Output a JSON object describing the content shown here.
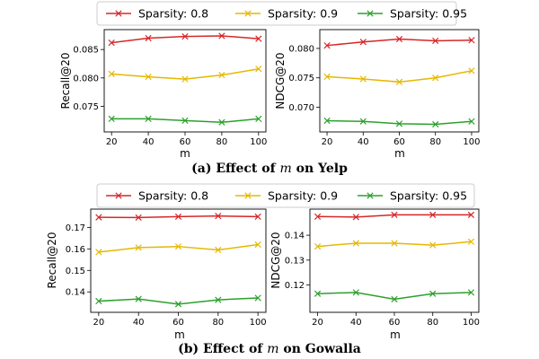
{
  "colors": {
    "red": "#d62728",
    "yellow": "#e6b800",
    "green": "#2ca02c"
  },
  "legends": [
    [
      "Sparsity: 0.8",
      "Sparsity: 0.9",
      "Sparsity: 0.95"
    ],
    [
      "Sparsity: 0.8",
      "Sparsity: 0.9",
      "Sparsity: 0.95"
    ]
  ],
  "captions": [
    {
      "prefix": "(a) Effect of ",
      "var": "m",
      "suffix": " on Yelp"
    },
    {
      "prefix": "(b) Effect of ",
      "var": "m",
      "suffix": " on Gowalla"
    }
  ],
  "chart_data": [
    {
      "type": "line",
      "dataset": "Yelp",
      "xlabel": "m",
      "ylabel": "Recall@20",
      "x": [
        20,
        40,
        60,
        80,
        100
      ],
      "xlim": [
        16,
        104
      ],
      "ylim": [
        0.0705,
        0.0885
      ],
      "yticks": [
        0.075,
        0.08,
        0.085
      ],
      "ytick_labels": [
        "0.075",
        "0.080",
        "0.085"
      ],
      "series": [
        {
          "name": "Sparsity: 0.8",
          "values": [
            0.0862,
            0.087,
            0.0873,
            0.0874,
            0.0869
          ]
        },
        {
          "name": "Sparsity: 0.9",
          "values": [
            0.0807,
            0.0802,
            0.0798,
            0.0805,
            0.0816
          ]
        },
        {
          "name": "Sparsity: 0.95",
          "values": [
            0.0728,
            0.0728,
            0.0725,
            0.0722,
            0.0728
          ]
        }
      ]
    },
    {
      "type": "line",
      "dataset": "Yelp",
      "xlabel": "m",
      "ylabel": "NDCG@20",
      "x": [
        20,
        40,
        60,
        80,
        100
      ],
      "xlim": [
        16,
        104
      ],
      "ylim": [
        0.0658,
        0.0832
      ],
      "yticks": [
        0.07,
        0.075,
        0.08
      ],
      "ytick_labels": [
        "0.070",
        "0.075",
        "0.080"
      ],
      "series": [
        {
          "name": "Sparsity: 0.8",
          "values": [
            0.0805,
            0.0811,
            0.0816,
            0.0813,
            0.0814
          ]
        },
        {
          "name": "Sparsity: 0.9",
          "values": [
            0.0752,
            0.0748,
            0.0743,
            0.075,
            0.0762
          ]
        },
        {
          "name": "Sparsity: 0.95",
          "values": [
            0.0677,
            0.0676,
            0.0672,
            0.0671,
            0.0676
          ]
        }
      ]
    },
    {
      "type": "line",
      "dataset": "Gowalla",
      "xlabel": "m",
      "ylabel": "Recall@20",
      "x": [
        20,
        40,
        60,
        80,
        100
      ],
      "xlim": [
        16,
        104
      ],
      "ylim": [
        0.1305,
        0.1785
      ],
      "yticks": [
        0.14,
        0.15,
        0.16,
        0.17
      ],
      "ytick_labels": [
        "0.14",
        "0.15",
        "0.16",
        "0.17"
      ],
      "series": [
        {
          "name": "Sparsity: 0.8",
          "values": [
            0.1747,
            0.1746,
            0.175,
            0.1753,
            0.175
          ]
        },
        {
          "name": "Sparsity: 0.9",
          "values": [
            0.1585,
            0.1606,
            0.1611,
            0.1595,
            0.162
          ]
        },
        {
          "name": "Sparsity: 0.95",
          "values": [
            0.1357,
            0.1367,
            0.1343,
            0.1363,
            0.1372
          ]
        }
      ]
    },
    {
      "type": "line",
      "dataset": "Gowalla",
      "xlabel": "m",
      "ylabel": "NDCG@20",
      "x": [
        20,
        40,
        60,
        80,
        100
      ],
      "xlim": [
        16,
        104
      ],
      "ylim": [
        0.109,
        0.1505
      ],
      "yticks": [
        0.12,
        0.13,
        0.14
      ],
      "ytick_labels": [
        "0.12",
        "0.13",
        "0.14"
      ],
      "series": [
        {
          "name": "Sparsity: 0.8",
          "values": [
            0.1475,
            0.1473,
            0.1482,
            0.1482,
            0.1482
          ]
        },
        {
          "name": "Sparsity: 0.9",
          "values": [
            0.1355,
            0.1368,
            0.1368,
            0.136,
            0.1374
          ]
        },
        {
          "name": "Sparsity: 0.95",
          "values": [
            0.1165,
            0.117,
            0.1143,
            0.1165,
            0.117
          ]
        }
      ]
    }
  ]
}
